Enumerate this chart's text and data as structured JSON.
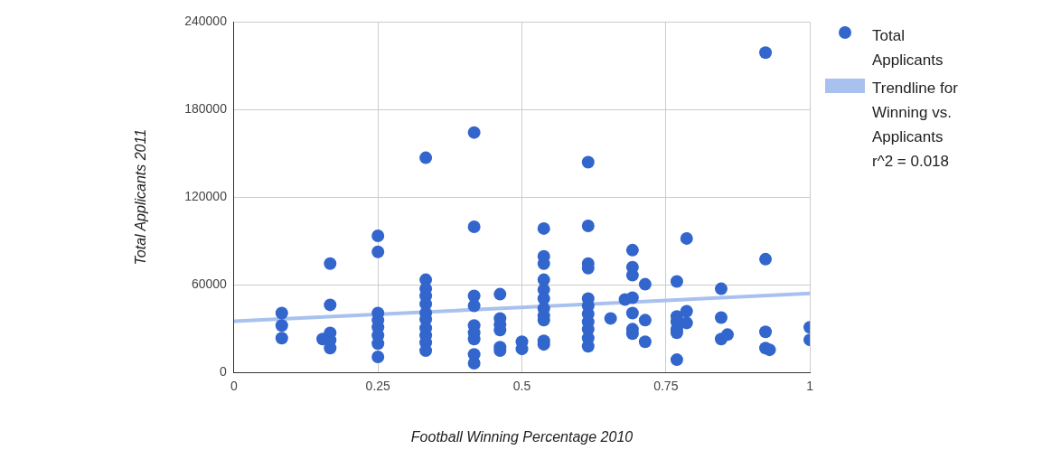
{
  "chart_data": {
    "type": "scatter",
    "xlabel": "Football Winning Percentage 2010",
    "ylabel": "Total Applicants 2011",
    "xlim": [
      0,
      1
    ],
    "xticks": [
      0,
      0.25,
      0.5,
      0.75,
      1
    ],
    "ylim": [
      0,
      240000
    ],
    "yticks": [
      0,
      60000,
      120000,
      180000,
      240000
    ],
    "grid": true,
    "legend": "right",
    "series": [
      {
        "name": "Total Applicants",
        "color": "#3366cc",
        "marker": "circle",
        "x": [
          0.083,
          0.083,
          0.083,
          0.154,
          0.167,
          0.167,
          0.167,
          0.167,
          0.167,
          0.25,
          0.25,
          0.25,
          0.25,
          0.25,
          0.25,
          0.25,
          0.25,
          0.333,
          0.333,
          0.333,
          0.333,
          0.333,
          0.333,
          0.333,
          0.333,
          0.333,
          0.333,
          0.333,
          0.417,
          0.417,
          0.417,
          0.417,
          0.417,
          0.417,
          0.417,
          0.417,
          0.417,
          0.462,
          0.462,
          0.462,
          0.462,
          0.462,
          0.462,
          0.5,
          0.5,
          0.538,
          0.538,
          0.538,
          0.538,
          0.538,
          0.538,
          0.538,
          0.538,
          0.538,
          0.538,
          0.538,
          0.615,
          0.615,
          0.615,
          0.615,
          0.615,
          0.615,
          0.615,
          0.615,
          0.615,
          0.615,
          0.615,
          0.654,
          0.679,
          0.692,
          0.692,
          0.692,
          0.692,
          0.692,
          0.692,
          0.692,
          0.714,
          0.714,
          0.714,
          0.769,
          0.769,
          0.769,
          0.769,
          0.769,
          0.769,
          0.786,
          0.786,
          0.786,
          0.846,
          0.846,
          0.846,
          0.857,
          0.923,
          0.923,
          0.923,
          0.923,
          0.93,
          1,
          1
        ],
        "values": [
          40600,
          32000,
          23400,
          22800,
          74500,
          46200,
          27000,
          22000,
          16600,
          93500,
          82500,
          40600,
          30800,
          25200,
          19700,
          10500,
          35700,
          147000,
          63400,
          57200,
          52300,
          46800,
          40600,
          36300,
          30200,
          25200,
          20300,
          14800,
          164300,
          99700,
          52300,
          45500,
          32000,
          27100,
          22800,
          12300,
          6200,
          53500,
          36900,
          32600,
          28900,
          17200,
          14800,
          20900,
          16000,
          98500,
          79400,
          74500,
          63400,
          56600,
          50500,
          43700,
          38800,
          35700,
          21500,
          19100,
          144000,
          100300,
          74500,
          71400,
          50500,
          45500,
          40000,
          34500,
          29500,
          23400,
          17800,
          36900,
          49800,
          83700,
          72000,
          66500,
          51100,
          40600,
          29500,
          26500,
          60300,
          35700,
          20900,
          62200,
          38200,
          34500,
          29500,
          27100,
          8600,
          91700,
          41800,
          33800,
          57200,
          37500,
          22800,
          25800,
          219000,
          77500,
          27700,
          16600,
          15400,
          30800,
          22200
        ]
      },
      {
        "name": "Trendline for Winning vs. Applicants r^2 = 0.018",
        "color": "#a9c1ee",
        "type": "line",
        "marker": "none",
        "x": [
          0,
          1
        ],
        "values": [
          35000,
          54000
        ]
      }
    ]
  }
}
